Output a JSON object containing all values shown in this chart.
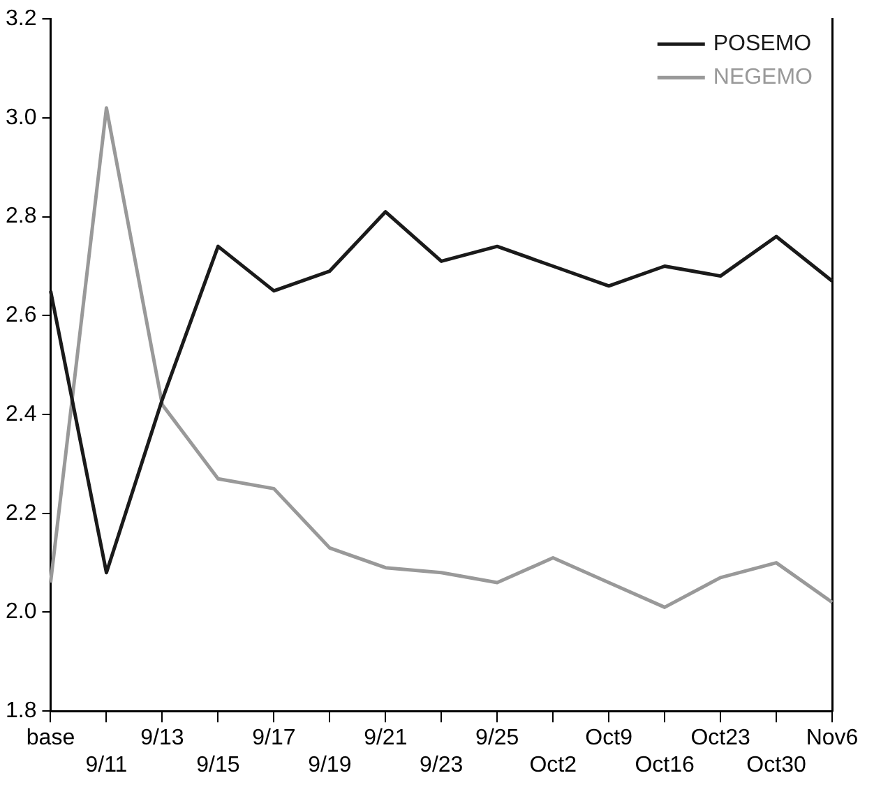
{
  "chart_data": {
    "type": "line",
    "categories": [
      "base",
      "9/11",
      "9/13",
      "9/15",
      "9/17",
      "9/19",
      "9/21",
      "9/23",
      "9/25",
      "Oct2",
      "Oct9",
      "Oct16",
      "Oct23",
      "Oct30",
      "Nov6"
    ],
    "series": [
      {
        "name": "POSEMO",
        "color": "#1a1a1a",
        "values": [
          2.65,
          2.08,
          2.43,
          2.74,
          2.65,
          2.69,
          2.81,
          2.71,
          2.74,
          2.7,
          2.66,
          2.7,
          2.68,
          2.76,
          2.67
        ]
      },
      {
        "name": "NEGEMO",
        "color": "#999999",
        "values": [
          2.06,
          3.02,
          2.42,
          2.27,
          2.25,
          2.13,
          2.09,
          2.08,
          2.06,
          2.11,
          2.06,
          2.01,
          2.07,
          2.1,
          2.02
        ]
      }
    ],
    "ylim": [
      1.8,
      3.2
    ],
    "yticks": [
      {
        "value": 1.8,
        "label": "1.8"
      },
      {
        "value": 2.0,
        "label": "2.0"
      },
      {
        "value": 2.2,
        "label": "2.2"
      },
      {
        "value": 2.4,
        "label": "2.4"
      },
      {
        "value": 2.6,
        "label": "2.6"
      },
      {
        "value": 2.8,
        "label": "2.8"
      },
      {
        "value": 3.0,
        "label": "3.0"
      },
      {
        "value": 3.2,
        "label": "3.2"
      }
    ],
    "grid": false,
    "legend": "top right",
    "marker": "none",
    "line_style": "solid"
  }
}
